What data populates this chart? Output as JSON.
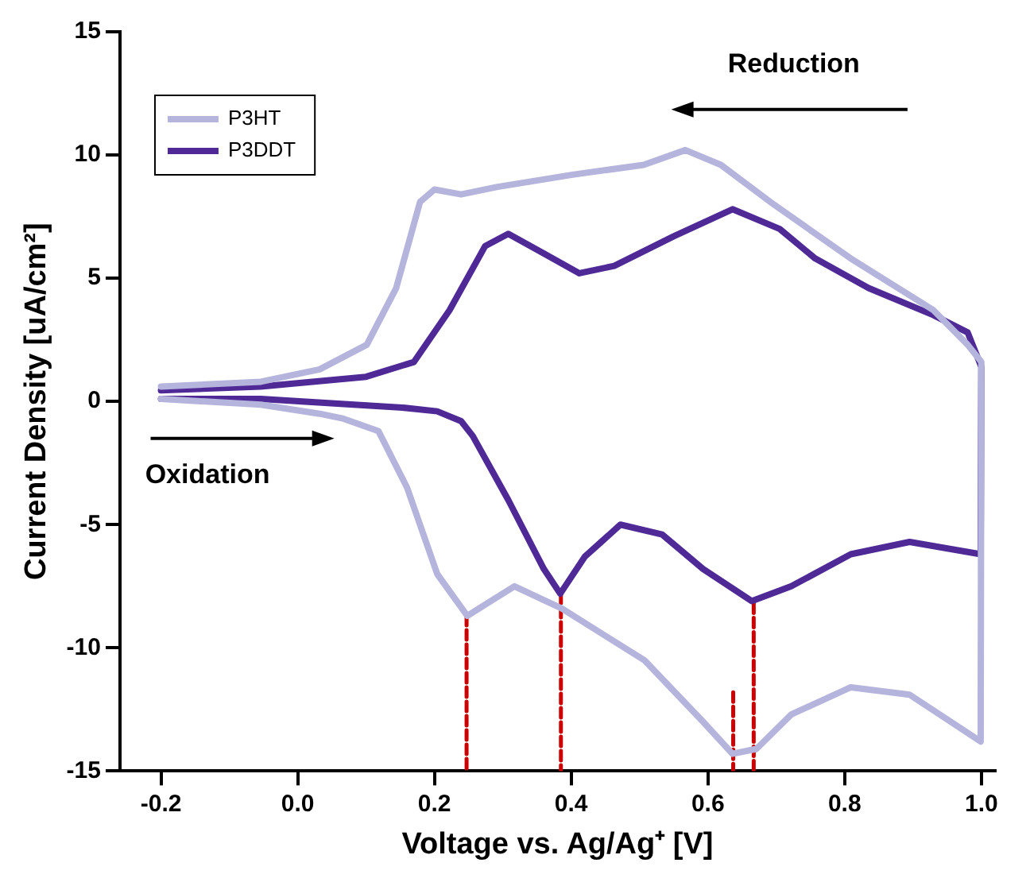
{
  "chart_data": {
    "type": "line",
    "xlabel": "Voltage vs. Ag/Ag⁺ [V]",
    "ylabel": "Current Density [uA/cm²]",
    "xlim": [
      -0.26,
      1.02
    ],
    "xticks": [
      -0.2,
      {
        "value": 0,
        "label": "0.0"
      },
      0.2,
      0.4,
      0.6,
      0.8,
      {
        "value": 1,
        "label": "1.0"
      }
    ],
    "ylim": [
      -15,
      15
    ],
    "yticks": [
      -15,
      -10,
      -5,
      0,
      5,
      10,
      15
    ],
    "legend": "top left",
    "marker": "none",
    "annotations": [
      "Reduction",
      "Oxidation"
    ],
    "series": [
      {
        "name": "P3HT",
        "type": "line",
        "color": "#b4b4dc",
        "line_style": "solid",
        "x": [
          -0.2,
          -0.054,
          0.032,
          0.067,
          0.118,
          0.16,
          0.204,
          0.248,
          0.317,
          0.386,
          0.507,
          0.593,
          0.636,
          0.671,
          0.722,
          0.809,
          0.895,
          0.999,
          1.0,
          0.98,
          0.93,
          0.809,
          0.696,
          0.619,
          0.567,
          0.506,
          0.402,
          0.291,
          0.239,
          0.2,
          0.179,
          0.144,
          0.101,
          0.032,
          -0.054,
          -0.2
        ],
        "values": [
          0.1,
          -0.13,
          -0.5,
          -0.7,
          -1.2,
          -3.5,
          -7.0,
          -8.7,
          -7.5,
          -8.4,
          -10.5,
          -13.0,
          -14.3,
          -14.1,
          -12.7,
          -11.6,
          -11.9,
          -13.8,
          1.6,
          2.3,
          3.7,
          5.8,
          8.0,
          9.6,
          10.2,
          9.6,
          9.2,
          8.7,
          8.4,
          8.6,
          8.1,
          4.6,
          2.3,
          1.3,
          0.8,
          0.6
        ]
      },
      {
        "name": "P3DDT",
        "type": "line",
        "color": "#4f2a96",
        "line_style": "solid",
        "x": [
          -0.2,
          -0.054,
          0.153,
          0.204,
          0.239,
          0.256,
          0.308,
          0.36,
          0.384,
          0.42,
          0.472,
          0.533,
          0.593,
          0.664,
          0.722,
          0.809,
          0.895,
          0.999,
          1.0,
          0.98,
          0.93,
          0.835,
          0.757,
          0.705,
          0.636,
          0.55,
          0.463,
          0.412,
          0.36,
          0.308,
          0.274,
          0.222,
          0.17,
          0.1,
          -0.054,
          -0.2
        ],
        "values": [
          0.1,
          0.1,
          -0.25,
          -0.4,
          -0.8,
          -1.4,
          -4.0,
          -6.8,
          -7.8,
          -6.3,
          -5.0,
          -5.4,
          -6.8,
          -8.1,
          -7.5,
          -6.2,
          -5.7,
          -6.2,
          1.4,
          2.8,
          3.5,
          4.6,
          5.8,
          7.0,
          7.8,
          6.7,
          5.5,
          5.2,
          6.0,
          6.8,
          6.3,
          3.7,
          1.6,
          1.0,
          0.6,
          0.45
        ]
      },
      {
        "type": "line",
        "color": "#cc0000",
        "line_style": "dashed",
        "x": [
          0.247,
          0.247
        ],
        "values": [
          -8.7,
          -15
        ]
      },
      {
        "type": "line",
        "color": "#cc0000",
        "line_style": "dashed",
        "x": [
          0.385,
          0.385
        ],
        "values": [
          -7.8,
          -15
        ]
      },
      {
        "type": "line",
        "color": "#cc0000",
        "line_style": "dashed",
        "x": [
          0.637,
          0.637
        ],
        "values": [
          -11.8,
          -15
        ]
      },
      {
        "type": "line",
        "color": "#cc0000",
        "line_style": "dashed",
        "x": [
          0.667,
          0.667
        ],
        "values": [
          -8.2,
          -15
        ]
      }
    ]
  }
}
